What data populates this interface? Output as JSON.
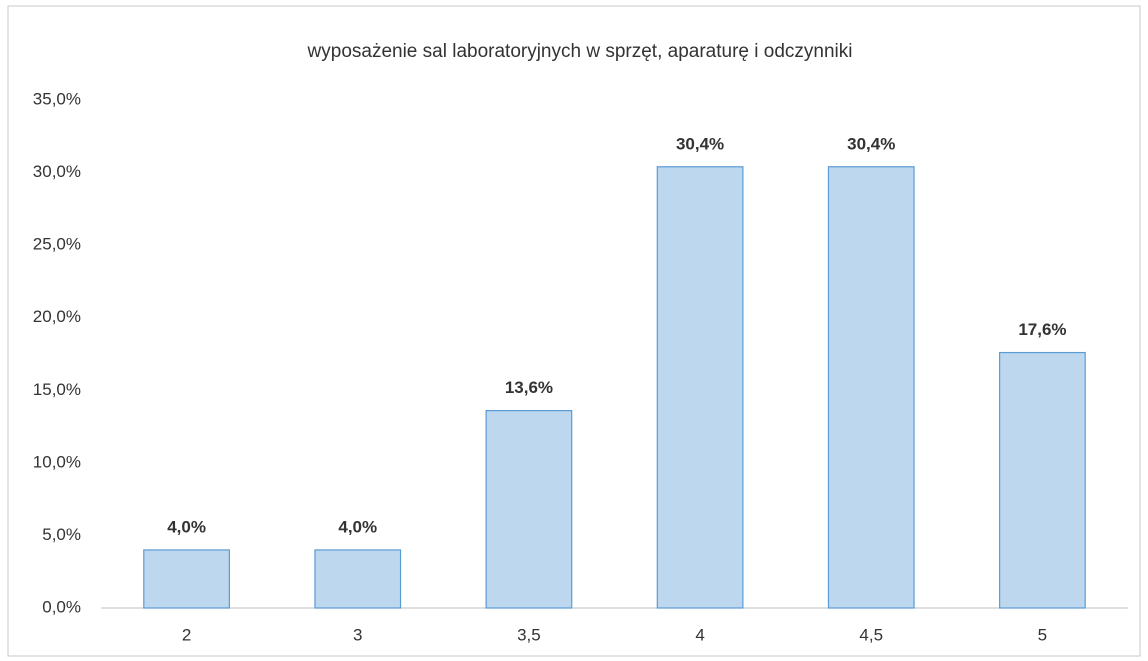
{
  "chart_data": {
    "type": "bar",
    "title": "wyposażenie sal laboratoryjnych w sprzęt, aparaturę i odczynniki",
    "categories": [
      "2",
      "3",
      "3,5",
      "4",
      "4,5",
      "5"
    ],
    "values": [
      4.0,
      4.0,
      13.6,
      30.4,
      30.4,
      17.6
    ],
    "value_labels": [
      "4,0%",
      "4,0%",
      "13,6%",
      "30,4%",
      "30,4%",
      "17,6%"
    ],
    "color": "#bdd7ee",
    "ylim": [
      0,
      35
    ],
    "yticks": [
      {
        "value": 0,
        "label": "0,0%"
      },
      {
        "value": 5,
        "label": "5,0%"
      },
      {
        "value": 10,
        "label": "10,0%"
      },
      {
        "value": 15,
        "label": "15,0%"
      },
      {
        "value": 20,
        "label": "20,0%"
      },
      {
        "value": 25,
        "label": "25,0%"
      },
      {
        "value": 30,
        "label": "30,0%"
      },
      {
        "value": 35,
        "label": "35,0%"
      }
    ],
    "grid": false
  }
}
